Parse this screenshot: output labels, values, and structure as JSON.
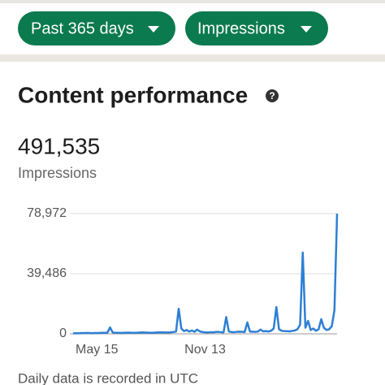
{
  "filters": {
    "period": "Past 365 days",
    "metric": "Impressions"
  },
  "section": {
    "title": "Content performance",
    "total": "491,535",
    "total_label": "Impressions",
    "footnote": "Daily data is recorded in UTC"
  },
  "chart_data": {
    "type": "line",
    "color": "#2d7fd3",
    "categories": [
      null,
      null,
      null,
      null,
      null,
      null,
      null,
      null,
      null,
      "May 15",
      null,
      null,
      null,
      null,
      null,
      null,
      null,
      null,
      null,
      null,
      null,
      null,
      null,
      null,
      null,
      null,
      null,
      null,
      null,
      null,
      null,
      null,
      null,
      null,
      null,
      null,
      null,
      null,
      null,
      null,
      null,
      null,
      null,
      null,
      null,
      null,
      null,
      null,
      null,
      null,
      "Nov 13",
      null,
      null,
      null,
      null,
      null,
      null,
      null,
      null,
      null,
      null,
      null,
      null,
      null,
      null,
      null,
      null,
      null,
      null,
      null,
      null,
      null,
      null,
      null,
      null,
      null,
      null,
      null,
      null,
      null,
      null,
      null,
      null,
      null,
      null,
      null,
      null,
      null,
      null,
      null,
      null,
      null,
      null,
      null,
      null,
      null,
      null,
      null,
      null,
      null,
      null
    ],
    "values": [
      300,
      400,
      350,
      500,
      450,
      600,
      500,
      400,
      550,
      500,
      600,
      700,
      650,
      800,
      4200,
      900,
      700,
      650,
      600,
      700,
      750,
      800,
      700,
      650,
      700,
      800,
      900,
      850,
      800,
      750,
      700,
      800,
      900,
      1000,
      950,
      900,
      850,
      1000,
      1200,
      1500,
      16500,
      3500,
      1800,
      2500,
      1500,
      2200,
      1300,
      2800,
      1600,
      1200,
      1000,
      900,
      1100,
      1000,
      1200,
      1300,
      1100,
      1000,
      11000,
      1500,
      1200,
      1100,
      1300,
      1400,
      1300,
      1200,
      7500,
      1500,
      1400,
      1300,
      1500,
      2800,
      1600,
      1800,
      1500,
      2000,
      3500,
      17600,
      3000,
      2000,
      1800,
      1700,
      1600,
      1900,
      2200,
      3000,
      6000,
      53400,
      4000,
      8500,
      2500,
      3500,
      2000,
      3000,
      9600,
      4000,
      2500,
      3000,
      5000,
      15500,
      78972
    ],
    "ylim": [
      0,
      78972
    ],
    "yticks": [
      0,
      {
        "value": 39486,
        "label": "39,486"
      },
      {
        "value": 78972,
        "label": "78,972"
      }
    ],
    "grid": true
  }
}
